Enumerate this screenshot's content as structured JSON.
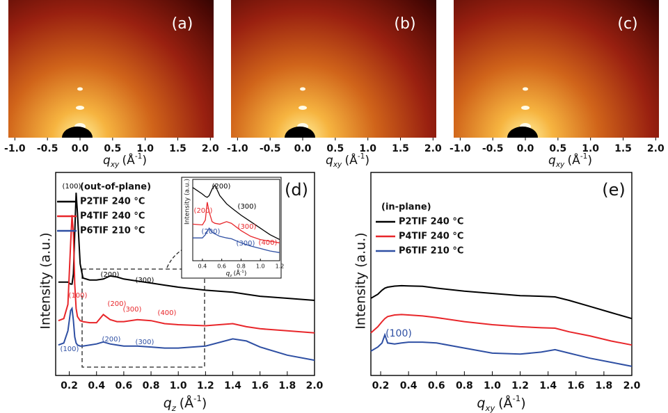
{
  "chart_data": [
    {
      "type": "image",
      "label": "(a)",
      "xlim": [
        -1.1,
        2.05
      ],
      "xticks": [
        {
          "value": -1,
          "label": "-1.0"
        },
        -0.5,
        {
          "value": 0,
          "label": "0.0"
        },
        0.5,
        {
          "value": 1,
          "label": "1.0"
        },
        1.5,
        {
          "value": 2,
          "label": "2.0"
        }
      ],
      "xlabel": {
        "symbol": "q",
        "sub": "xy",
        "unit": "(Å",
        "sup": "-1",
        "close": ")"
      }
    },
    {
      "type": "image",
      "label": "(b)",
      "xlim": [
        -1.1,
        2.05
      ],
      "xticks": [
        {
          "value": -1,
          "label": "-1.0"
        },
        -0.5,
        {
          "value": 0,
          "label": "0.0"
        },
        0.5,
        {
          "value": 1,
          "label": "1.0"
        },
        1.5,
        {
          "value": 2,
          "label": "2.0"
        }
      ],
      "xlabel": {
        "symbol": "q",
        "sub": "xy",
        "unit": "(Å",
        "sup": "-1",
        "close": ")"
      }
    },
    {
      "type": "image",
      "label": "(c)",
      "xlim": [
        -1.1,
        2.05
      ],
      "xticks": [
        {
          "value": -1,
          "label": "-1.0"
        },
        -0.5,
        {
          "value": 0,
          "label": "0.0"
        },
        0.5,
        {
          "value": 1,
          "label": "1.0"
        },
        1.5,
        {
          "value": 2,
          "label": "2.0"
        }
      ],
      "xlabel": {
        "symbol": "q",
        "sub": "xy",
        "unit": "(Å",
        "sup": "-1",
        "close": ")"
      }
    },
    {
      "type": "line",
      "label": "(d)",
      "legend_title": "(out-of-plane)",
      "ylabel": "Intensity (a.u.)",
      "xlabel": {
        "symbol": "q",
        "sub": "z",
        "unit": "(Å",
        "sup": "-1",
        "close": ")"
      },
      "xlim": [
        0.1,
        2.0
      ],
      "ylim": [
        0,
        100
      ],
      "xticks": [
        0.2,
        0.4,
        0.6,
        0.8,
        {
          "value": 1,
          "label": "1.0"
        },
        1.2,
        1.4,
        1.6,
        1.8,
        {
          "value": 2,
          "label": "2.0"
        }
      ],
      "x": [
        0.12,
        0.16,
        0.19,
        0.21,
        0.22,
        0.23,
        0.24,
        0.25,
        0.26,
        0.28,
        0.3,
        0.35,
        0.4,
        0.45,
        0.5,
        0.55,
        0.6,
        0.7,
        0.8,
        0.9,
        1.0,
        1.2,
        1.4,
        1.5,
        1.6,
        1.8,
        2.0
      ],
      "series": [
        {
          "name": "P2TIF 240 °C",
          "color": "#000000",
          "values": [
            46,
            46,
            46,
            45,
            45,
            50,
            70,
            90,
            80,
            55,
            48,
            47,
            47,
            47.5,
            49,
            48.5,
            47.5,
            46.5,
            45.5,
            44.5,
            43.5,
            42,
            41,
            40,
            39,
            38,
            37
          ]
        },
        {
          "name": "P4TIF 240 °C",
          "color": "#e8262a",
          "values": [
            27,
            28,
            35,
            65,
            79,
            70,
            45,
            33,
            29,
            27,
            26.5,
            26,
            26,
            30,
            27.5,
            26.5,
            26.5,
            27.5,
            27,
            25.5,
            25,
            24.5,
            25.5,
            24,
            23,
            22,
            21
          ]
        },
        {
          "name": "P6TIF 210 °C",
          "color": "#2e4fa3",
          "values": [
            15,
            16,
            22,
            32,
            33,
            27,
            19,
            16,
            15,
            14.5,
            14.5,
            15,
            15.5,
            16.5,
            15.5,
            15,
            14.5,
            14.5,
            14,
            13.5,
            13.5,
            14.5,
            18,
            17,
            14,
            10,
            7.5
          ]
        }
      ],
      "annotations": [
        {
          "text": "(100)",
          "color": "#000000"
        },
        {
          "text": "(200)",
          "color": "#000000"
        },
        {
          "text": "(300)",
          "color": "#000000"
        },
        {
          "text": "(100)",
          "color": "#e8262a"
        },
        {
          "text": "(200)",
          "color": "#e8262a"
        },
        {
          "text": "(300)",
          "color": "#e8262a"
        },
        {
          "text": "(400)",
          "color": "#e8262a"
        },
        {
          "text": "(100)",
          "color": "#2e4fa3"
        },
        {
          "text": "(200)",
          "color": "#2e4fa3"
        },
        {
          "text": "(300)",
          "color": "#2e4fa3"
        }
      ],
      "inset": {
        "type": "line",
        "ylabel": "Intensity (a.u.)",
        "xlabel": {
          "symbol": "q",
          "sub": "z",
          "unit": "(Å",
          "sup": "-1",
          "close": ")"
        },
        "xlim": [
          0.3,
          1.2
        ],
        "ylim": [
          0,
          100
        ],
        "xticks": [
          0.4,
          0.6,
          0.8,
          {
            "value": 1,
            "label": "1.0"
          },
          1.2
        ],
        "x": [
          0.3,
          0.4,
          0.43,
          0.45,
          0.47,
          0.5,
          0.53,
          0.58,
          0.65,
          0.7,
          0.8,
          0.9,
          1.0,
          1.1,
          1.2
        ],
        "series": [
          {
            "name": "P2TIF 240 °C",
            "color": "#000000",
            "values": [
              90,
              82,
              79,
              78,
              80,
              88,
              93,
              80,
              70,
              65,
              56,
              48,
              40,
              32,
              26
            ]
          },
          {
            "name": "P4TIF 240 °C",
            "color": "#e8262a",
            "values": [
              45,
              44,
              50,
              72,
              60,
              48,
              46,
              45,
              48,
              46,
              37,
              30,
              26,
              24,
              22
            ]
          },
          {
            "name": "P6TIF 210 °C",
            "color": "#2e4fa3",
            "values": [
              28,
              28,
              32,
              36,
              40,
              35,
              33,
              30,
              28,
              27,
              22,
              18,
              15,
              12,
              10
            ]
          }
        ],
        "annotations": [
          {
            "text": "(200)",
            "color": "#000000"
          },
          {
            "text": "(300)",
            "color": "#000000"
          },
          {
            "text": "(200)",
            "color": "#e8262a"
          },
          {
            "text": "(300)",
            "color": "#e8262a"
          },
          {
            "text": "(400)",
            "color": "#e8262a"
          },
          {
            "text": "(200)",
            "color": "#2e4fa3"
          },
          {
            "text": "(300)",
            "color": "#2e4fa3"
          }
        ]
      }
    },
    {
      "type": "line",
      "label": "(e)",
      "legend_title": "(in-plane)",
      "ylabel": "Intensity (a.u.)",
      "xlabel": {
        "symbol": "q",
        "sub": "xy",
        "unit": "(Å",
        "sup": "-1",
        "close": ")"
      },
      "xlim": [
        0.13,
        2.0
      ],
      "ylim": [
        0,
        100
      ],
      "xticks": [
        0.2,
        0.4,
        0.6,
        0.8,
        {
          "value": 1,
          "label": "1.0"
        },
        1.2,
        1.4,
        1.6,
        1.8,
        {
          "value": 2,
          "label": "2.0"
        }
      ],
      "x": [
        0.13,
        0.18,
        0.21,
        0.23,
        0.25,
        0.3,
        0.35,
        0.4,
        0.5,
        0.6,
        0.8,
        1.0,
        1.2,
        1.35,
        1.45,
        1.55,
        1.7,
        1.85,
        2.0
      ],
      "series": [
        {
          "name": "P2TIF 240 °C",
          "color": "#000000",
          "values": [
            38,
            40,
            42,
            43,
            43.5,
            44,
            44.2,
            44.1,
            43.9,
            43,
            41.5,
            40.4,
            39.3,
            39,
            38.7,
            37,
            34,
            31,
            28
          ]
        },
        {
          "name": "P4TIF 240 °C",
          "color": "#e8262a",
          "values": [
            21,
            24,
            26.5,
            28,
            29,
            29.8,
            30,
            29.8,
            29.3,
            28.5,
            26.5,
            25,
            24,
            23.5,
            23.3,
            21.5,
            19.5,
            17,
            15
          ]
        },
        {
          "name": "P6TIF 210 °C",
          "color": "#2e4fa3",
          "values": [
            12,
            14,
            16,
            20,
            16,
            15.5,
            16,
            16.4,
            16.4,
            16,
            13.5,
            11,
            10.5,
            11.5,
            12.7,
            11,
            8.5,
            6.5,
            4.5
          ]
        }
      ],
      "annotations": [
        {
          "text": "(100)",
          "color": "#2e4fa3"
        }
      ]
    }
  ]
}
